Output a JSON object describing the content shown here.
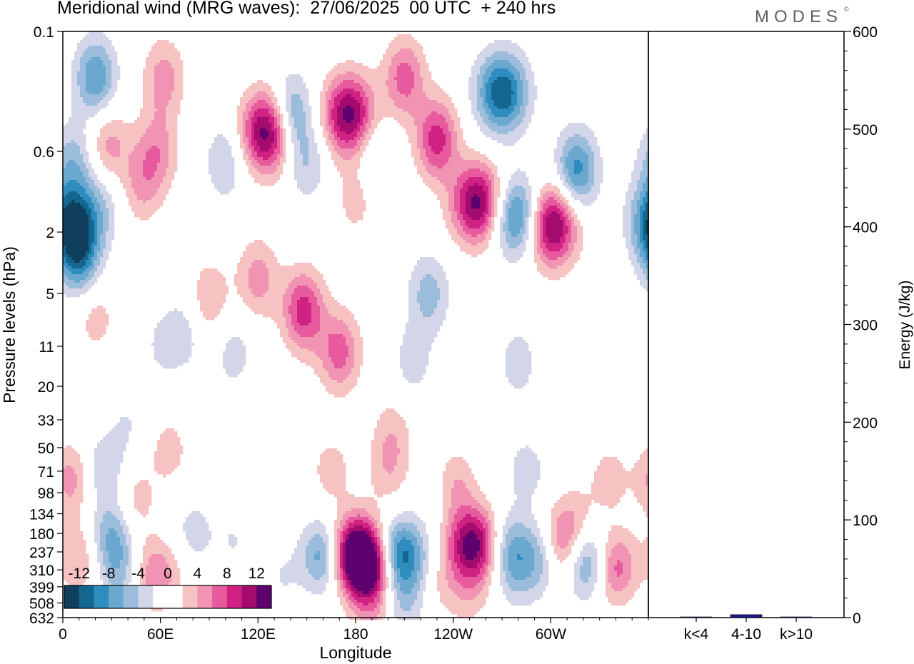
{
  "header": {
    "title": "Meridional wind (MRG waves):  27/06/2025  00 UTC  + 240 hrs",
    "brand": "MODES",
    "brand_mark": "©"
  },
  "colors": {
    "palette": [
      "#0f3f5c",
      "#13678f",
      "#2f8cbf",
      "#6aa8cf",
      "#9cbcdb",
      "#d2d6e8",
      "#ffffff",
      "#ffffff",
      "#f6c2c2",
      "#f194b4",
      "#e85a9e",
      "#cf2283",
      "#a30b6e",
      "#5e006e"
    ],
    "bar_fill": "#1a1a8c"
  },
  "chart_data": [
    {
      "type": "heatmap",
      "title": "Meridional wind (MRG waves):  27/06/2025  00 UTC  + 240 hrs",
      "xlabel": "Longitude",
      "ylabel": "Pressure levels (hPa)",
      "x_ticks": [
        "0",
        "60E",
        "120E",
        "180",
        "120W",
        "60W"
      ],
      "y_ticks": [
        "0.1",
        "0.6",
        "2",
        "5",
        "11",
        "20",
        "33",
        "50",
        "71",
        "98",
        "134",
        "180",
        "237",
        "310",
        "399",
        "508",
        "632"
      ],
      "colorbar": {
        "labels": [
          "-12",
          "-8",
          "-4",
          "0",
          "4",
          "8",
          "12"
        ],
        "levels": [
          -14,
          -12,
          -10,
          -8,
          -6,
          -4,
          -2,
          0,
          2,
          4,
          6,
          8,
          10,
          12,
          14
        ]
      },
      "blobs": [
        {
          "x": 5,
          "y": 1.7,
          "v": -11
        },
        {
          "x": 10,
          "y": 2.8,
          "v": -9
        },
        {
          "x": 6,
          "y": 0.7,
          "v": -5
        },
        {
          "x": 20,
          "y": 0.2,
          "v": -8
        },
        {
          "x": 25,
          "y": 1.3,
          "v": -3
        },
        {
          "x": 28,
          "y": 0.55,
          "v": 5
        },
        {
          "x": 48,
          "y": 1.0,
          "v": 4
        },
        {
          "x": 100,
          "y": 0.7,
          "v": -4
        },
        {
          "x": 58,
          "y": 0.6,
          "v": 5
        },
        {
          "x": 62,
          "y": 0.2,
          "v": 5
        },
        {
          "x": 126,
          "y": 0.45,
          "v": 14
        },
        {
          "x": 140,
          "y": 0.35,
          "v": -8
        },
        {
          "x": 150,
          "y": 0.7,
          "v": -4
        },
        {
          "x": 176,
          "y": 0.35,
          "v": 13
        },
        {
          "x": 190,
          "y": 0.6,
          "v": -3
        },
        {
          "x": 210,
          "y": 0.2,
          "v": 7
        },
        {
          "x": 230,
          "y": 0.5,
          "v": 9
        },
        {
          "x": 255,
          "y": 1.3,
          "v": 13
        },
        {
          "x": 270,
          "y": 0.25,
          "v": -12
        },
        {
          "x": 280,
          "y": 1.6,
          "v": -11
        },
        {
          "x": 300,
          "y": 1.8,
          "v": 14
        },
        {
          "x": 316,
          "y": 0.8,
          "v": -9
        },
        {
          "x": 180,
          "y": 1.2,
          "v": 3
        },
        {
          "x": 225,
          "y": 5,
          "v": -5
        },
        {
          "x": 120,
          "y": 4,
          "v": 5
        },
        {
          "x": 148,
          "y": 6.5,
          "v": 9
        },
        {
          "x": 170,
          "y": 12,
          "v": 7
        },
        {
          "x": 90,
          "y": 5.5,
          "v": 4
        },
        {
          "x": 75,
          "y": 9,
          "v": -3
        },
        {
          "x": 105,
          "y": 12,
          "v": -3
        },
        {
          "x": 60,
          "y": 11,
          "v": -2
        },
        {
          "x": 20,
          "y": 7,
          "v": 3
        },
        {
          "x": 215,
          "y": 14,
          "v": -3
        },
        {
          "x": 280,
          "y": 14,
          "v": -3
        },
        {
          "x": 40,
          "y": 35,
          "v": -2
        },
        {
          "x": 5,
          "y": 80,
          "v": 5
        },
        {
          "x": 25,
          "y": 70,
          "v": -4
        },
        {
          "x": 30,
          "y": 190,
          "v": -6
        },
        {
          "x": 45,
          "y": 110,
          "v": 3
        },
        {
          "x": 10,
          "y": 260,
          "v": 4
        },
        {
          "x": 35,
          "y": 330,
          "v": -4
        },
        {
          "x": 55,
          "y": 330,
          "v": 5
        },
        {
          "x": 68,
          "y": 330,
          "v": 2
        },
        {
          "x": 80,
          "y": 180,
          "v": -3
        },
        {
          "x": 105,
          "y": 200,
          "v": -2
        },
        {
          "x": 135,
          "y": 340,
          "v": -2
        },
        {
          "x": 160,
          "y": 250,
          "v": -8
        },
        {
          "x": 180,
          "y": 230,
          "v": 12
        },
        {
          "x": 188,
          "y": 300,
          "v": 14
        },
        {
          "x": 190,
          "y": 600,
          "v": 3
        },
        {
          "x": 207,
          "y": 250,
          "v": -12
        },
        {
          "x": 210,
          "y": 500,
          "v": -4
        },
        {
          "x": 232,
          "y": 400,
          "v": 2
        },
        {
          "x": 240,
          "y": 90,
          "v": 6
        },
        {
          "x": 200,
          "y": 70,
          "v": 3
        },
        {
          "x": 203,
          "y": 40,
          "v": 3
        },
        {
          "x": 252,
          "y": 210,
          "v": 13
        },
        {
          "x": 250,
          "y": 420,
          "v": 3
        },
        {
          "x": 235,
          "y": 96,
          "v": -3
        },
        {
          "x": 275,
          "y": 225,
          "v": -6
        },
        {
          "x": 280,
          "y": 340,
          "v": -3
        },
        {
          "x": 285,
          "y": 70,
          "v": -3
        },
        {
          "x": 295,
          "y": 250,
          "v": -6
        },
        {
          "x": 305,
          "y": 215,
          "v": 7
        },
        {
          "x": 322,
          "y": 280,
          "v": -7
        },
        {
          "x": 340,
          "y": 300,
          "v": 7
        },
        {
          "x": 336,
          "y": 80,
          "v": 3
        },
        {
          "x": 315,
          "y": 150,
          "v": 3
        },
        {
          "x": 65,
          "y": 52,
          "v": 3
        },
        {
          "x": 165,
          "y": 70,
          "v": 3
        }
      ]
    },
    {
      "type": "bar",
      "ylabel": "Energy (J/kg)",
      "categories": [
        "k<4",
        "4-10",
        "k>10"
      ],
      "values": [
        0.3,
        3,
        0.2
      ],
      "ylim": [
        0,
        600
      ],
      "y_ticks": [
        "0",
        "100",
        "200",
        "300",
        "400",
        "500",
        "600"
      ]
    }
  ]
}
